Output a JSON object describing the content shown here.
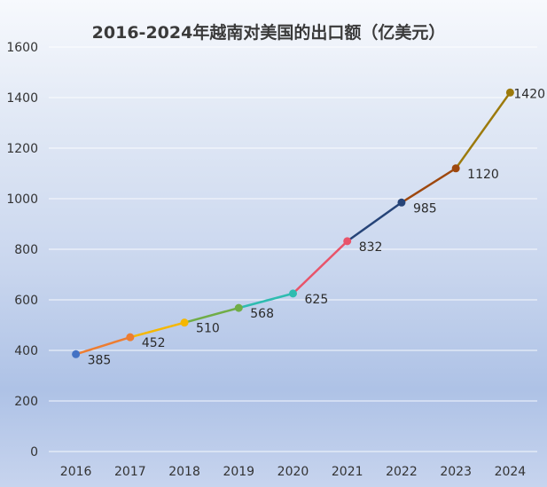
{
  "chart_data": {
    "type": "line",
    "title": "2016-2024年越南对美国的出口额（亿美元）",
    "xlabel": "",
    "ylabel": "",
    "categories": [
      "2016",
      "2017",
      "2018",
      "2019",
      "2020",
      "2021",
      "2022",
      "2023",
      "2024"
    ],
    "values": [
      385,
      452,
      510,
      568,
      625,
      832,
      985,
      1120,
      1420
    ],
    "data_labels": [
      "385",
      "452",
      "510",
      "568",
      "625",
      "832",
      "985",
      "1120",
      "1420"
    ],
    "ylim": [
      0,
      1600
    ],
    "y_ticks": [
      "0",
      "200",
      "400",
      "600",
      "800",
      "1000",
      "1200",
      "1400",
      "1600"
    ],
    "grid": true,
    "legend": "none",
    "point_colors": [
      "#4472c4",
      "#ed7d31",
      "#f5b700",
      "#70ad47",
      "#2ebcb0",
      "#e8546a",
      "#264478",
      "#9e480e",
      "#9c7a0c"
    ],
    "segment_colors": [
      "#ed7d31",
      "#f5b700",
      "#70ad47",
      "#2ebcb0",
      "#e8546a",
      "#264478",
      "#9e480e",
      "#9c7a0c"
    ]
  }
}
